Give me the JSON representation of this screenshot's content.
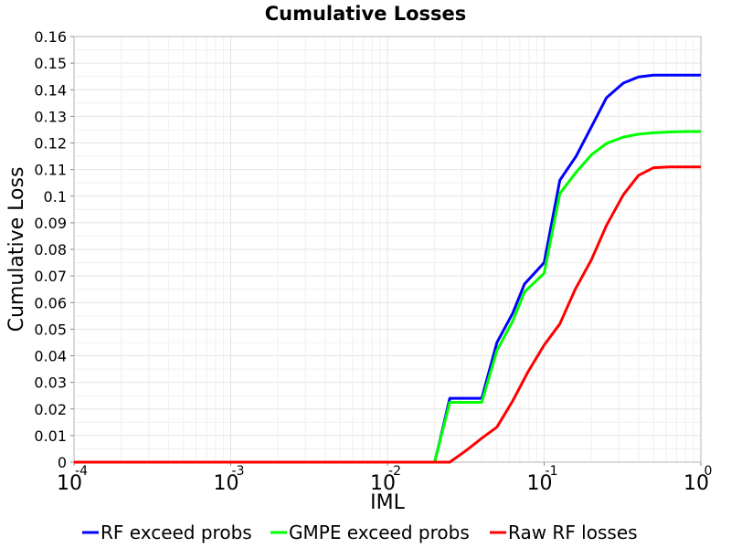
{
  "chart_data": {
    "type": "line",
    "title": "Cumulative Losses",
    "xlabel": "IML",
    "ylabel": "Cumulative Loss",
    "xscale": "log",
    "xlim": [
      0.0001,
      1
    ],
    "ylim": [
      0,
      0.16
    ],
    "x_ticks": [
      {
        "base": "10",
        "exp": "-4",
        "value": 0.0001
      },
      {
        "base": "10",
        "exp": "-3",
        "value": 0.001
      },
      {
        "base": "10",
        "exp": "-2",
        "value": 0.01
      },
      {
        "base": "10",
        "exp": "-1",
        "value": 0.1
      },
      {
        "base": "10",
        "exp": "0",
        "value": 1
      }
    ],
    "y_ticks": [
      "0",
      "0.01",
      "0.02",
      "0.03",
      "0.04",
      "0.05",
      "0.06",
      "0.07",
      "0.08",
      "0.09",
      "0.1",
      "0.11",
      "0.12",
      "0.13",
      "0.14",
      "0.15",
      "0.16"
    ],
    "grid": true,
    "legend_position": "bottom",
    "series": [
      {
        "name": "RF exceed probs",
        "color": "#0000ff",
        "x": [
          0.0001,
          0.02,
          0.021,
          0.025,
          0.04,
          0.05,
          0.063,
          0.075,
          0.1,
          0.126,
          0.16,
          0.2,
          0.25,
          0.32,
          0.4,
          0.5,
          0.63,
          0.8,
          1.0
        ],
        "y": [
          0,
          0,
          0.005,
          0.024,
          0.024,
          0.045,
          0.056,
          0.067,
          0.075,
          0.106,
          0.115,
          0.126,
          0.137,
          0.1425,
          0.1448,
          0.1455,
          0.1455,
          0.1455,
          0.1455
        ]
      },
      {
        "name": "GMPE exceed probs",
        "color": "#00ff00",
        "x": [
          0.0001,
          0.02,
          0.021,
          0.025,
          0.04,
          0.05,
          0.063,
          0.075,
          0.1,
          0.126,
          0.16,
          0.2,
          0.25,
          0.32,
          0.4,
          0.5,
          0.63,
          0.8,
          1.0
        ],
        "y": [
          0,
          0,
          0.005,
          0.0225,
          0.0225,
          0.042,
          0.053,
          0.064,
          0.071,
          0.101,
          0.109,
          0.1155,
          0.1198,
          0.1222,
          0.1233,
          0.1238,
          0.1241,
          0.1243,
          0.1243
        ]
      },
      {
        "name": "Raw RF losses",
        "color": "#ff0000",
        "x": [
          0.0001,
          0.025,
          0.032,
          0.04,
          0.05,
          0.063,
          0.079,
          0.1,
          0.126,
          0.158,
          0.2,
          0.25,
          0.32,
          0.4,
          0.5,
          0.63,
          0.8,
          1.0
        ],
        "y": [
          0,
          0,
          0.0045,
          0.009,
          0.0132,
          0.023,
          0.034,
          0.044,
          0.052,
          0.065,
          0.076,
          0.089,
          0.1005,
          0.1078,
          0.1107,
          0.111,
          0.111,
          0.111
        ]
      }
    ]
  }
}
